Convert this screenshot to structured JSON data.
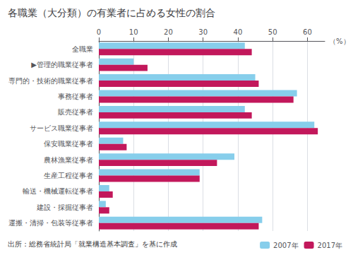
{
  "chart_data": {
    "type": "bar",
    "orientation": "horizontal",
    "title": "各職業（大分類）の有業者に占める女性の割合",
    "xlabel": "（%）",
    "source": "出所：総務省統計局「就業構造基本調査」を基に作成",
    "categories": [
      "全職業",
      "▶管理的職業従事者",
      "専門的・技術的職業従事者",
      "事務従事者",
      "販売従事者",
      "サービス職業従事者",
      "保安職業従事者",
      "農林漁業従事者",
      "生産工程従事者",
      "輸送・機械運転従事者",
      "建設・採掘従事者",
      "運搬・清掃・包装等従事者"
    ],
    "series": [
      {
        "name": "2007年",
        "color": "#87CEEB",
        "values": [
          42,
          10,
          45,
          57,
          42,
          62,
          7,
          39,
          29,
          3,
          2,
          47
        ]
      },
      {
        "name": "2017年",
        "color": "#C2185B",
        "values": [
          44,
          14,
          46,
          56,
          44,
          63,
          8,
          34,
          29,
          4,
          3,
          46
        ]
      }
    ],
    "xlim": [
      0,
      65
    ],
    "xticks": [
      0,
      10,
      20,
      30,
      40,
      50,
      60
    ],
    "grid": true,
    "legend": "lower right"
  }
}
